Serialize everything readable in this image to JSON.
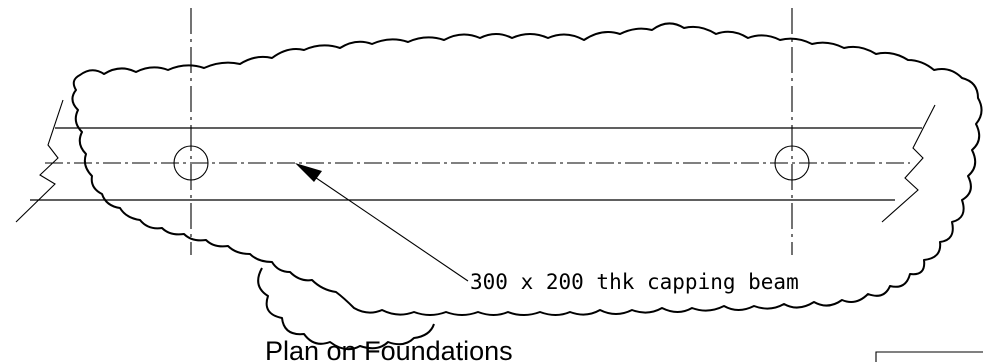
{
  "annotation": {
    "text": "300 x 200 thk capping beam"
  },
  "title": {
    "text": "Plan on Foundations"
  },
  "icons": {
    "pile_left": "circle",
    "pile_right": "circle",
    "leader": "arrow"
  }
}
